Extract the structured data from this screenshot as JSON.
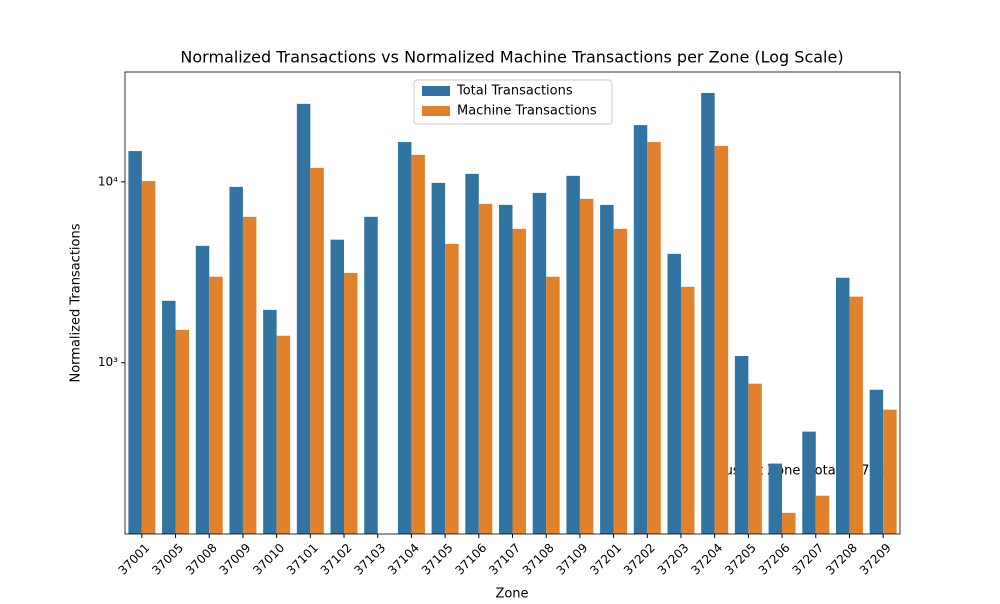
{
  "chart_data": {
    "type": "bar",
    "title": "Normalized Transactions vs Normalized Machine Transactions per Zone (Log Scale)",
    "x_label": "Zone",
    "y_label": "Normalized Transactions",
    "annotation": "Busiest Zone (total): 37204",
    "log_scale": true,
    "legend_position": "upper center",
    "categories": [
      "37001",
      "37005",
      "37008",
      "37009",
      "37010",
      "37101",
      "37102",
      "37103",
      "37104",
      "37105",
      "37106",
      "37107",
      "37108",
      "37109",
      "37201",
      "37202",
      "37203",
      "37204",
      "37205",
      "37206",
      "37207",
      "37208",
      "37209"
    ],
    "series": [
      {
        "name": "Total Transactions",
        "color": "#3274a1",
        "values": [
          14800,
          2200,
          4430,
          9380,
          1960,
          27000,
          4790,
          6410,
          16600,
          9870,
          11070,
          7460,
          8690,
          10800,
          7460,
          20600,
          4000,
          31000,
          1090,
          277,
          416,
          2950,
          709
        ]
      },
      {
        "name": "Machine Transactions",
        "color": "#e1812c",
        "values": [
          10100,
          1520,
          2990,
          6410,
          1410,
          11950,
          3140,
          null,
          14100,
          4540,
          7560,
          5500,
          2990,
          8060,
          5500,
          16600,
          2630,
          15800,
          766,
          148,
          184,
          2320,
          550
        ]
      }
    ],
    "ylim": [
      113,
      40500
    ],
    "yticks": [
      {
        "value": 1000,
        "label": "10³"
      },
      {
        "value": 10000,
        "label": "10⁴"
      }
    ]
  }
}
